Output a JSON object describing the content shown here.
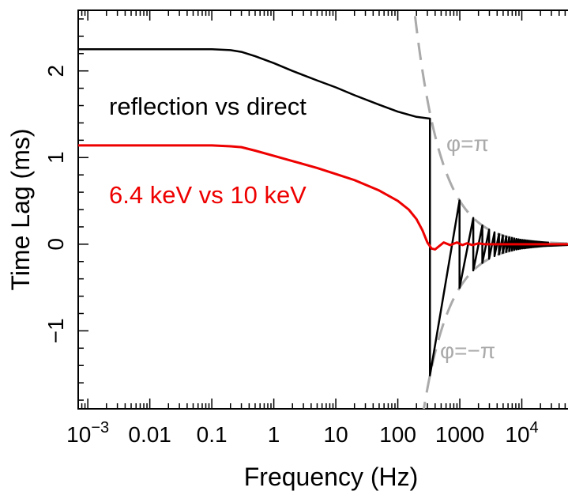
{
  "chart_data": {
    "type": "line",
    "title": "",
    "xlabel": "Frequency (Hz)",
    "ylabel": "Time Lag (ms)",
    "x_scale": "log",
    "xlim": [
      0.0007,
      100000
    ],
    "ylim": [
      -1.9,
      2.7
    ],
    "grid": false,
    "x_ticks": [
      {
        "value": 0.001,
        "label": "10",
        "sup": "−3"
      },
      {
        "value": 0.01,
        "label": "0.01",
        "sup": ""
      },
      {
        "value": 0.1,
        "label": "0.1",
        "sup": ""
      },
      {
        "value": 1,
        "label": "1",
        "sup": ""
      },
      {
        "value": 10,
        "label": "10",
        "sup": ""
      },
      {
        "value": 100,
        "label": "100",
        "sup": ""
      },
      {
        "value": 1000,
        "label": "1000",
        "sup": ""
      },
      {
        "value": 10000,
        "label": "10",
        "sup": "4"
      }
    ],
    "y_ticks": [
      {
        "value": -1,
        "label": "−1"
      },
      {
        "value": 0,
        "label": "0"
      },
      {
        "value": 1,
        "label": "1"
      },
      {
        "value": 2,
        "label": "2"
      }
    ],
    "series": [
      {
        "name": "reflection vs direct",
        "color": "#000000",
        "pre_break": {
          "x": [
            0.0007,
            0.1,
            0.2,
            0.3,
            0.5,
            1,
            2,
            5,
            10,
            20,
            50,
            100,
            200,
            330
          ],
          "y": [
            2.25,
            2.25,
            2.24,
            2.22,
            2.17,
            2.09,
            2.0,
            1.89,
            1.81,
            1.72,
            1.61,
            1.53,
            1.47,
            1.45
          ]
        },
        "break_x": 330,
        "oscillation_envelope": true
      },
      {
        "name": "6.4 keV vs 10 keV",
        "color": "#ee0000",
        "x": [
          0.0007,
          0.1,
          0.2,
          0.3,
          0.5,
          1,
          2,
          5,
          10,
          20,
          50,
          100,
          150,
          200,
          250,
          300,
          350,
          400,
          450,
          550,
          700,
          900,
          1100,
          1300,
          1600,
          2000,
          2500,
          3000,
          4000,
          6000,
          10000,
          100000
        ],
        "y": [
          1.14,
          1.14,
          1.13,
          1.12,
          1.08,
          1.02,
          0.96,
          0.88,
          0.81,
          0.74,
          0.62,
          0.5,
          0.4,
          0.29,
          0.16,
          0.02,
          -0.05,
          -0.06,
          -0.03,
          0.02,
          -0.01,
          0.02,
          -0.01,
          0.01,
          -0.01,
          0.01,
          0.0,
          0.0,
          0.0,
          0.0,
          0.0,
          0.0
        ]
      }
    ],
    "annotations": {
      "series_label_black": "reflection vs direct",
      "series_label_red": "6.4 keV vs 10 keV",
      "phi_pi": "φ=π",
      "phi_minus_pi": "φ=−π"
    },
    "colors": {
      "reflection": "#000000",
      "line_64": "#ee0000",
      "phase_limit": "#aaaaaa"
    }
  }
}
